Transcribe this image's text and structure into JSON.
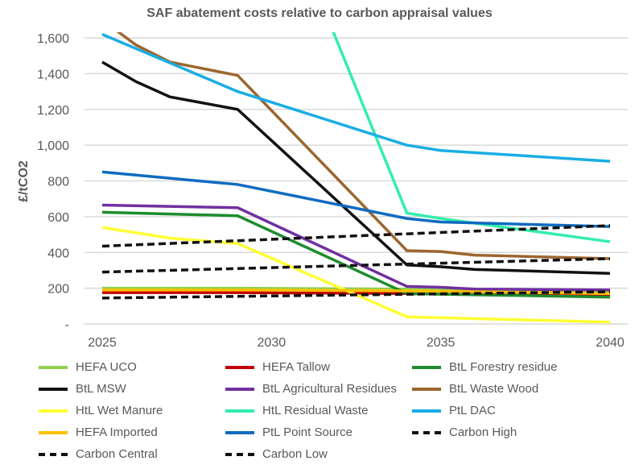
{
  "chart_data": {
    "type": "line",
    "title": "SAF abatement costs relative to carbon appraisal values",
    "xlabel": "",
    "ylabel": "£/tCO2",
    "xlim": [
      2025,
      2040
    ],
    "ylim": [
      0,
      1600
    ],
    "x_ticks": [
      "2025",
      "2030",
      "2035",
      "2040"
    ],
    "y_ticks": [
      "-",
      "200",
      "400",
      "600",
      "800",
      "1,000",
      "1,200",
      "1,400",
      "1,600"
    ],
    "legend_position": "bottom",
    "series": [
      {
        "name": "HEFA UCO",
        "color": "#92D050",
        "dash": false,
        "points": [
          [
            2025,
            200
          ],
          [
            2029,
            200
          ],
          [
            2034,
            195
          ],
          [
            2040,
            175
          ]
        ]
      },
      {
        "name": "HEFA Tallow",
        "color": "#C00000",
        "dash": false,
        "points": [
          [
            2025,
            175
          ],
          [
            2029,
            175
          ],
          [
            2034,
            170
          ],
          [
            2040,
            155
          ]
        ]
      },
      {
        "name": "BtL Forestry residue",
        "color": "#1E8C2E",
        "dash": false,
        "points": [
          [
            2025,
            625
          ],
          [
            2029,
            605
          ],
          [
            2034,
            170
          ],
          [
            2040,
            150
          ]
        ]
      },
      {
        "name": "BtL MSW",
        "color": "#111111",
        "dash": false,
        "points": [
          [
            2025,
            1465
          ],
          [
            2026,
            1355
          ],
          [
            2027,
            1270
          ],
          [
            2029,
            1200
          ],
          [
            2034,
            330
          ],
          [
            2035,
            320
          ],
          [
            2036,
            305
          ],
          [
            2040,
            283
          ]
        ]
      },
      {
        "name": "BtL Agricultural Residues",
        "color": "#7030A0",
        "dash": false,
        "points": [
          [
            2025,
            665
          ],
          [
            2029,
            650
          ],
          [
            2034,
            210
          ],
          [
            2035,
            205
          ],
          [
            2036,
            195
          ],
          [
            2040,
            190
          ]
        ]
      },
      {
        "name": "BtL Waste Wood",
        "color": "#9C6630",
        "dash": false,
        "points": [
          [
            2025,
            1700
          ],
          [
            2026,
            1560
          ],
          [
            2027,
            1465
          ],
          [
            2029,
            1390
          ],
          [
            2034,
            410
          ],
          [
            2035,
            405
          ],
          [
            2036,
            385
          ],
          [
            2040,
            365
          ]
        ]
      },
      {
        "name": "HtL Wet Manure",
        "color": "#FFFF33",
        "dash": false,
        "points": [
          [
            2025,
            540
          ],
          [
            2027,
            480
          ],
          [
            2029,
            450
          ],
          [
            2034,
            40
          ],
          [
            2040,
            10
          ]
        ]
      },
      {
        "name": "HtL Residual Waste",
        "color": "#33EEAA",
        "dash": false,
        "points": [
          [
            2029,
            2950
          ],
          [
            2034,
            620
          ],
          [
            2035,
            590
          ],
          [
            2040,
            460
          ]
        ]
      },
      {
        "name": "PtL DAC",
        "color": "#1AADE4",
        "dash": false,
        "points": [
          [
            2025,
            1620
          ],
          [
            2027,
            1460
          ],
          [
            2029,
            1300
          ],
          [
            2034,
            1000
          ],
          [
            2035,
            970
          ],
          [
            2040,
            910
          ]
        ]
      },
      {
        "name": "HEFA Imported",
        "color": "#FFC000",
        "dash": false,
        "points": [
          [
            2025,
            190
          ],
          [
            2029,
            190
          ],
          [
            2034,
            185
          ],
          [
            2040,
            170
          ]
        ]
      },
      {
        "name": "PtL Point Source",
        "color": "#0F6BBF",
        "dash": false,
        "points": [
          [
            2025,
            850
          ],
          [
            2029,
            780
          ],
          [
            2034,
            590
          ],
          [
            2035,
            570
          ],
          [
            2040,
            545
          ]
        ]
      },
      {
        "name": "Carbon High",
        "color": "#111111",
        "dash": true,
        "points": [
          [
            2025,
            435
          ],
          [
            2040,
            550
          ]
        ]
      },
      {
        "name": "Carbon Central",
        "color": "#111111",
        "dash": true,
        "points": [
          [
            2025,
            290
          ],
          [
            2040,
            365
          ]
        ]
      },
      {
        "name": "Carbon Low",
        "color": "#111111",
        "dash": true,
        "points": [
          [
            2025,
            145
          ],
          [
            2040,
            180
          ]
        ]
      }
    ]
  }
}
